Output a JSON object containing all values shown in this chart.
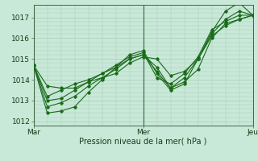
{
  "xlabel": "Pression niveau de la mer( hPa )",
  "bg_color": "#c8e8d8",
  "line_color": "#1a6b1a",
  "grid_color": "#a8c8b8",
  "ylim": [
    1011.8,
    1017.6
  ],
  "xlim": [
    0,
    96
  ],
  "xtick_positions": [
    0,
    48,
    96
  ],
  "xtick_labels": [
    "Mar",
    "Mer",
    "Jeu"
  ],
  "ytick_positions": [
    1012,
    1013,
    1014,
    1015,
    1016,
    1017
  ],
  "vline_positions": [
    0,
    48,
    96
  ],
  "series": [
    [
      0,
      1014.7,
      6,
      1013.7,
      12,
      1013.6,
      18,
      1013.6,
      24,
      1013.9,
      30,
      1014.1,
      36,
      1014.3,
      42,
      1014.8,
      48,
      1015.1,
      54,
      1015.0,
      60,
      1014.2,
      66,
      1014.4,
      72,
      1015.0,
      78,
      1016.1,
      84,
      1016.6,
      90,
      1016.9,
      96,
      1017.1
    ],
    [
      0,
      1014.7,
      6,
      1013.2,
      12,
      1013.5,
      18,
      1013.8,
      24,
      1014.0,
      30,
      1014.3,
      36,
      1014.6,
      42,
      1015.0,
      48,
      1015.2,
      54,
      1014.6,
      60,
      1013.6,
      66,
      1013.9,
      72,
      1014.5,
      78,
      1016.0,
      84,
      1016.7,
      90,
      1016.9,
      96,
      1017.1
    ],
    [
      0,
      1014.7,
      6,
      1012.7,
      12,
      1012.9,
      18,
      1013.2,
      24,
      1013.7,
      30,
      1014.1,
      36,
      1014.5,
      42,
      1015.0,
      48,
      1015.2,
      54,
      1014.4,
      60,
      1013.6,
      66,
      1014.1,
      72,
      1015.0,
      78,
      1016.2,
      84,
      1016.9,
      90,
      1017.3,
      96,
      1017.1
    ],
    [
      0,
      1014.7,
      6,
      1012.4,
      12,
      1012.5,
      18,
      1012.7,
      24,
      1013.4,
      30,
      1014.0,
      36,
      1014.6,
      42,
      1015.2,
      48,
      1015.4,
      54,
      1014.3,
      60,
      1013.5,
      66,
      1013.8,
      72,
      1015.0,
      78,
      1016.3,
      84,
      1017.3,
      90,
      1017.7,
      96,
      1017.1
    ],
    [
      0,
      1014.7,
      6,
      1013.0,
      12,
      1013.1,
      18,
      1013.5,
      24,
      1013.9,
      30,
      1014.3,
      36,
      1014.7,
      42,
      1015.1,
      48,
      1015.3,
      54,
      1014.1,
      60,
      1013.8,
      66,
      1014.3,
      72,
      1015.1,
      78,
      1016.4,
      84,
      1016.8,
      90,
      1017.1,
      96,
      1017.1
    ]
  ]
}
